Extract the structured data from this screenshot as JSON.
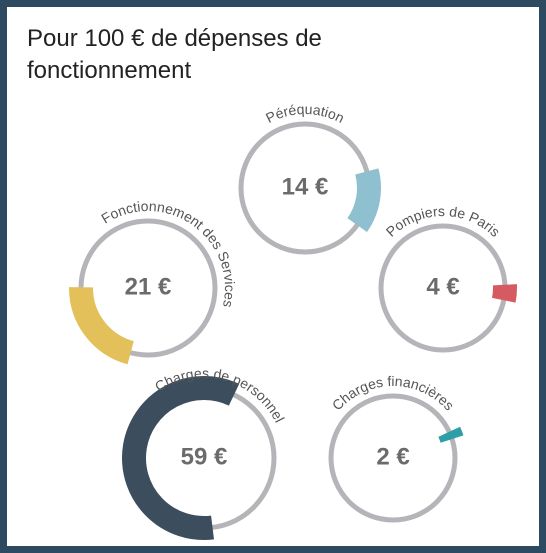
{
  "chart_data": {
    "type": "gauge",
    "title": "Pour 100 € de dépenses de fonctionnement",
    "ylim": [
      0,
      100
    ],
    "categories": [
      "Péréquation",
      "Fonctionnement des Services",
      "Pompiers de Paris",
      "Charges de personnel",
      "Charges financières"
    ],
    "values": [
      14,
      21,
      4,
      59,
      2
    ],
    "value_labels": [
      "14 €",
      "21 €",
      "4 €",
      "59 €",
      "2 €"
    ],
    "colors": [
      "#8fc0cf",
      "#e3c05a",
      "#d65a62",
      "#3c4e5d",
      "#2f9fa7"
    ]
  }
}
